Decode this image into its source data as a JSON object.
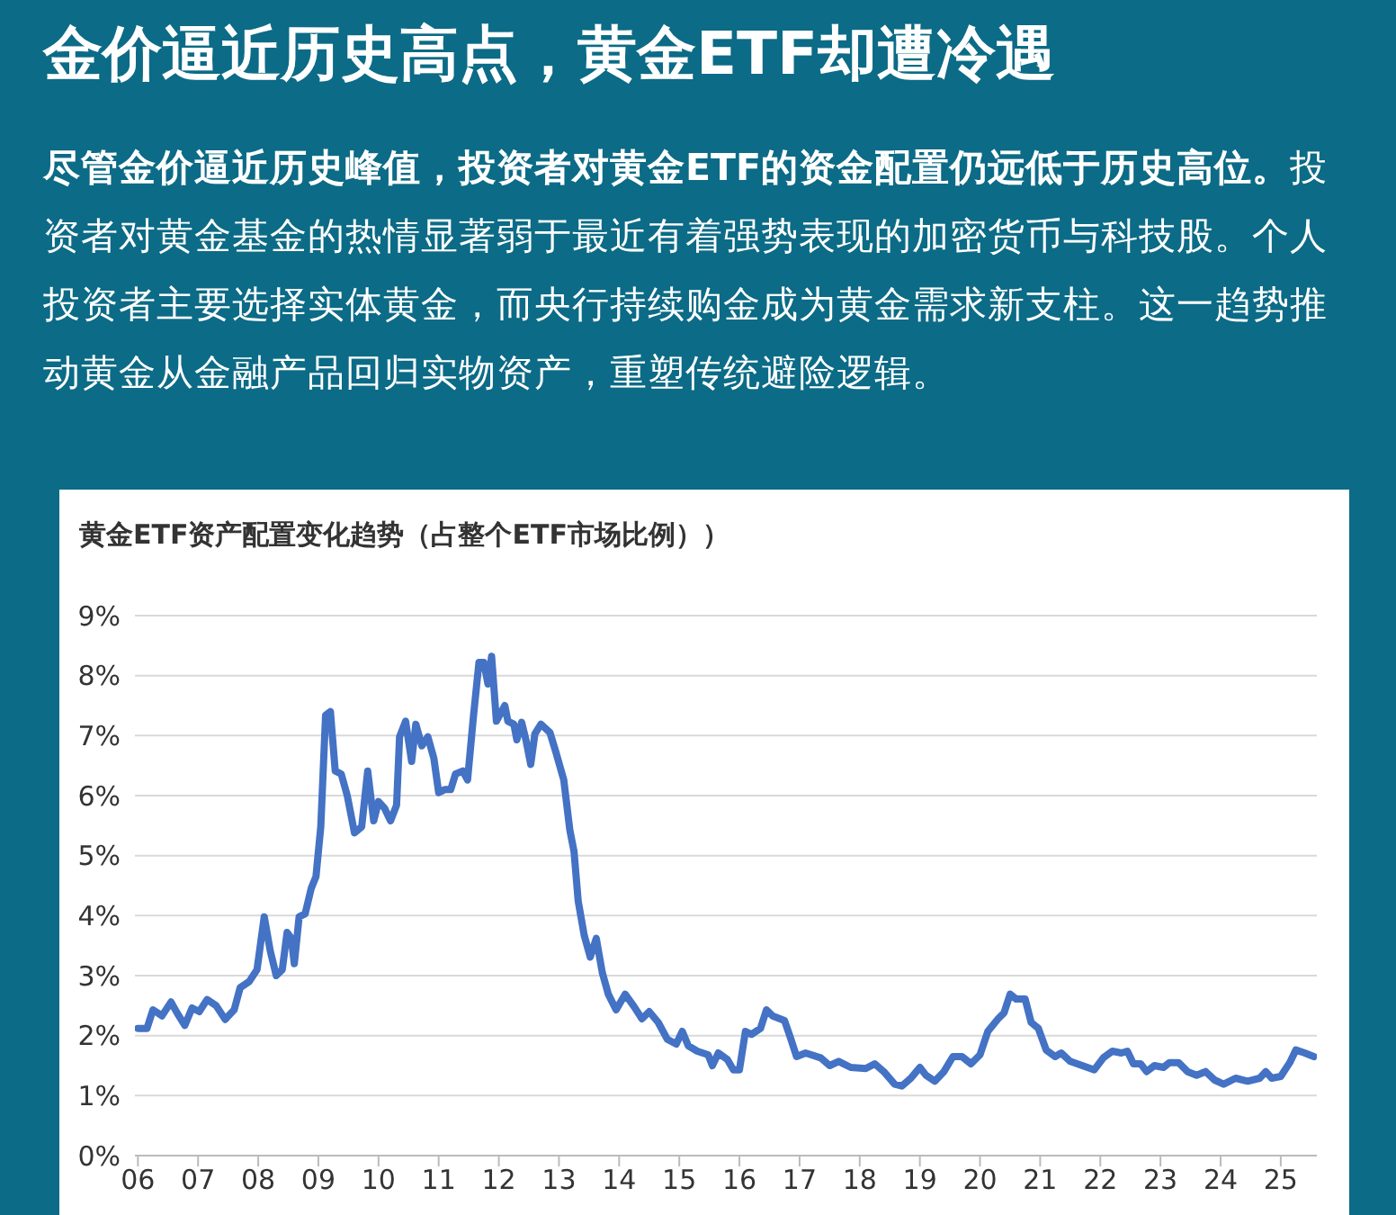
{
  "chart_data": {
    "type": "line",
    "title": "金价逼近历史高点，黄金ETF却遭冷遇",
    "subtitle": "尽管金价逼近历史峰值，投资者对黄金ETF的资金配置仍远低于历史高位。投资者对黄金基金的热情显著弱于最近有着强势表现的加密货币与科技股。个人投资者主要选择实体黄金，而央行持续购金成为黄金需求新支柱。这一趋势推动黄金从金融产品回归实物资产，重塑传统避险逻辑。",
    "annotations": [
      "黄金ETF资产配置变化趋势（占整个ETF市场比例））"
    ],
    "x": [
      2006.0,
      2006.15,
      2006.25,
      2006.4,
      2006.55,
      2006.65,
      2006.78,
      2006.9,
      2007.02,
      2007.15,
      2007.3,
      2007.45,
      2007.6,
      2007.7,
      2007.85,
      2007.98,
      2008.1,
      2008.2,
      2008.3,
      2008.4,
      2008.48,
      2008.55,
      2008.6,
      2008.68,
      2008.78,
      2008.88,
      2008.96,
      2009.04,
      2009.12,
      2009.2,
      2009.28,
      2009.38,
      2009.48,
      2009.6,
      2009.72,
      2009.82,
      2009.92,
      2010.0,
      2010.1,
      2010.2,
      2010.3,
      2010.35,
      2010.45,
      2010.55,
      2010.62,
      2010.72,
      2010.82,
      2010.92,
      2011.0,
      2011.1,
      2011.2,
      2011.28,
      2011.4,
      2011.48,
      2011.58,
      2011.67,
      2011.75,
      2011.82,
      2011.88,
      2011.96,
      2012.1,
      2012.15,
      2012.25,
      2012.3,
      2012.38,
      2012.45,
      2012.53,
      2012.6,
      2012.7,
      2012.85,
      2012.95,
      2013.08,
      2013.18,
      2013.25,
      2013.32,
      2013.42,
      2013.52,
      2013.62,
      2013.72,
      2013.82,
      2013.95,
      2014.1,
      2014.25,
      2014.38,
      2014.5,
      2014.65,
      2014.8,
      2014.95,
      2015.05,
      2015.15,
      2015.3,
      2015.48,
      2015.55,
      2015.65,
      2015.8,
      2015.9,
      2016.0,
      2016.1,
      2016.2,
      2016.35,
      2016.45,
      2016.55,
      2016.75,
      2016.85,
      2016.95,
      2017.1,
      2017.35,
      2017.5,
      2017.65,
      2017.85,
      2018.1,
      2018.25,
      2018.4,
      2018.58,
      2018.7,
      2018.85,
      2019.0,
      2019.1,
      2019.25,
      2019.4,
      2019.55,
      2019.7,
      2019.85,
      2020.0,
      2020.13,
      2020.3,
      2020.4,
      2020.5,
      2020.6,
      2020.75,
      2020.85,
      2020.97,
      2021.1,
      2021.25,
      2021.35,
      2021.5,
      2021.7,
      2021.9,
      2022.05,
      2022.2,
      2022.35,
      2022.45,
      2022.55,
      2022.67,
      2022.77,
      2022.9,
      2023.05,
      2023.15,
      2023.3,
      2023.45,
      2023.6,
      2023.75,
      2023.9,
      2024.05,
      2024.25,
      2024.45,
      2024.65,
      2024.75,
      2024.85,
      2025.0,
      2025.15,
      2025.25,
      2025.4,
      2025.55
    ],
    "series": [
      {
        "color": "#4472c4",
        "values": [
          2.12,
          2.12,
          2.43,
          2.33,
          2.56,
          2.38,
          2.17,
          2.46,
          2.4,
          2.6,
          2.5,
          2.27,
          2.43,
          2.8,
          2.9,
          3.1,
          3.98,
          3.41,
          3.0,
          3.1,
          3.72,
          3.62,
          3.2,
          3.98,
          4.03,
          4.45,
          4.65,
          5.48,
          7.34,
          7.4,
          6.41,
          6.36,
          6.0,
          5.38,
          5.48,
          6.41,
          5.58,
          5.9,
          5.79,
          5.58,
          5.84,
          6.98,
          7.24,
          6.57,
          7.19,
          6.83,
          6.98,
          6.62,
          6.05,
          6.1,
          6.1,
          6.36,
          6.41,
          6.26,
          7.34,
          8.22,
          8.22,
          7.86,
          8.32,
          7.24,
          7.5,
          7.24,
          7.19,
          6.93,
          7.22,
          6.93,
          6.52,
          7.03,
          7.19,
          7.05,
          6.72,
          6.26,
          5.43,
          5.07,
          4.24,
          3.67,
          3.31,
          3.62,
          3.05,
          2.69,
          2.43,
          2.69,
          2.48,
          2.28,
          2.4,
          2.22,
          1.94,
          1.86,
          2.07,
          1.83,
          1.74,
          1.68,
          1.5,
          1.71,
          1.6,
          1.43,
          1.43,
          2.07,
          2.02,
          2.12,
          2.43,
          2.33,
          2.25,
          1.96,
          1.65,
          1.71,
          1.63,
          1.5,
          1.57,
          1.47,
          1.45,
          1.53,
          1.4,
          1.19,
          1.16,
          1.29,
          1.47,
          1.34,
          1.24,
          1.4,
          1.65,
          1.65,
          1.53,
          1.68,
          2.07,
          2.28,
          2.38,
          2.69,
          2.61,
          2.61,
          2.22,
          2.12,
          1.76,
          1.65,
          1.71,
          1.57,
          1.5,
          1.43,
          1.63,
          1.74,
          1.71,
          1.74,
          1.53,
          1.53,
          1.4,
          1.5,
          1.47,
          1.55,
          1.55,
          1.4,
          1.34,
          1.4,
          1.26,
          1.19,
          1.29,
          1.24,
          1.29,
          1.4,
          1.29,
          1.32,
          1.55,
          1.76,
          1.71,
          1.65
        ]
      }
    ],
    "xlim": [
      2005.95,
      2025.6
    ],
    "xticks": [
      {
        "value": 2006,
        "label": "06"
      },
      {
        "value": 2007,
        "label": "07"
      },
      {
        "value": 2008,
        "label": "08"
      },
      {
        "value": 2009,
        "label": "09"
      },
      {
        "value": 2010,
        "label": "10"
      },
      {
        "value": 2011,
        "label": "11"
      },
      {
        "value": 2012,
        "label": "12"
      },
      {
        "value": 2013,
        "label": "13"
      },
      {
        "value": 2014,
        "label": "14"
      },
      {
        "value": 2015,
        "label": "15"
      },
      {
        "value": 2016,
        "label": "16"
      },
      {
        "value": 2017,
        "label": "17"
      },
      {
        "value": 2018,
        "label": "18"
      },
      {
        "value": 2019,
        "label": "19"
      },
      {
        "value": 2020,
        "label": "20"
      },
      {
        "value": 2021,
        "label": "21"
      },
      {
        "value": 2022,
        "label": "22"
      },
      {
        "value": 2023,
        "label": "23"
      },
      {
        "value": 2024,
        "label": "24"
      },
      {
        "value": 2025,
        "label": "25"
      }
    ],
    "ylim": [
      0,
      9
    ],
    "yticks": [
      {
        "value": 0,
        "label": "0%"
      },
      {
        "value": 1,
        "label": "1%"
      },
      {
        "value": 2,
        "label": "2%"
      },
      {
        "value": 3,
        "label": "3%"
      },
      {
        "value": 4,
        "label": "4%"
      },
      {
        "value": 5,
        "label": "5%"
      },
      {
        "value": 6,
        "label": "6%"
      },
      {
        "value": 7,
        "label": "7%"
      },
      {
        "value": 8,
        "label": "8%"
      },
      {
        "value": 9,
        "label": "9%"
      }
    ],
    "grid": "y",
    "legend": false,
    "marker": "none",
    "line_style": "solid"
  }
}
